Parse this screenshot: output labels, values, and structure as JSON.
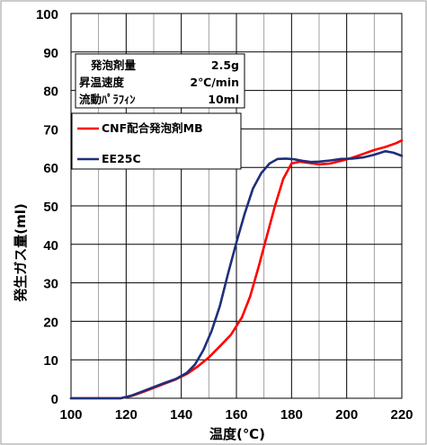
{
  "chart_data": {
    "type": "line",
    "xlabel": "温度(℃)",
    "ylabel": "発生ガス量(ml)",
    "xlim": [
      100,
      220
    ],
    "ylim": [
      0,
      100
    ],
    "xticks": [
      "100",
      "120",
      "140",
      "160",
      "180",
      "200",
      "220"
    ],
    "yticks": [
      "0",
      "10",
      "20",
      "30",
      "40",
      "50",
      "60",
      "70",
      "80",
      "90",
      "100"
    ],
    "grid": true,
    "legend_position": "upper-left",
    "conditions": [
      {
        "label": "発泡剤量",
        "value": "2.5g"
      },
      {
        "label": "昇温速度",
        "value": "2℃/min"
      },
      {
        "label": "流動ﾊﾟﾗﾌｨﾝ",
        "value": "10ml"
      }
    ],
    "series": [
      {
        "name": "CNF配合発泡剤MB",
        "color": "#ff0000",
        "points": [
          [
            100,
            0
          ],
          [
            118,
            0
          ],
          [
            122,
            0.6
          ],
          [
            126,
            1.6
          ],
          [
            130,
            2.7
          ],
          [
            134,
            3.8
          ],
          [
            138,
            4.9
          ],
          [
            142,
            6.3
          ],
          [
            146,
            8.3
          ],
          [
            150,
            10.6
          ],
          [
            154,
            13.5
          ],
          [
            158,
            16.5
          ],
          [
            162,
            21
          ],
          [
            165,
            26.5
          ],
          [
            168,
            34
          ],
          [
            171,
            42
          ],
          [
            174,
            50
          ],
          [
            177,
            57
          ],
          [
            180,
            61
          ],
          [
            183,
            61.5
          ],
          [
            186,
            61.2
          ],
          [
            190,
            60.8
          ],
          [
            194,
            61
          ],
          [
            198,
            61.7
          ],
          [
            202,
            62.5
          ],
          [
            206,
            63.5
          ],
          [
            210,
            64.5
          ],
          [
            214,
            65.3
          ],
          [
            218,
            66.3
          ],
          [
            220,
            67
          ]
        ]
      },
      {
        "name": "EE25C",
        "color": "#1f2f7a",
        "points": [
          [
            100,
            0
          ],
          [
            118,
            0
          ],
          [
            122,
            0.7
          ],
          [
            126,
            1.8
          ],
          [
            130,
            2.9
          ],
          [
            134,
            4
          ],
          [
            138,
            5
          ],
          [
            142,
            6.6
          ],
          [
            145,
            8.8
          ],
          [
            148,
            12.5
          ],
          [
            151,
            17.5
          ],
          [
            154,
            24
          ],
          [
            157,
            32.5
          ],
          [
            160,
            40.5
          ],
          [
            163,
            48
          ],
          [
            166,
            54.5
          ],
          [
            169,
            58.5
          ],
          [
            172,
            61
          ],
          [
            175,
            62.2
          ],
          [
            178,
            62.3
          ],
          [
            181,
            62.1
          ],
          [
            184,
            61.7
          ],
          [
            187,
            61.4
          ],
          [
            190,
            61.5
          ],
          [
            194,
            61.8
          ],
          [
            198,
            62.2
          ],
          [
            202,
            62.3
          ],
          [
            206,
            62.6
          ],
          [
            210,
            63.3
          ],
          [
            214,
            64.2
          ],
          [
            217,
            63.8
          ],
          [
            220,
            63
          ]
        ]
      }
    ]
  }
}
